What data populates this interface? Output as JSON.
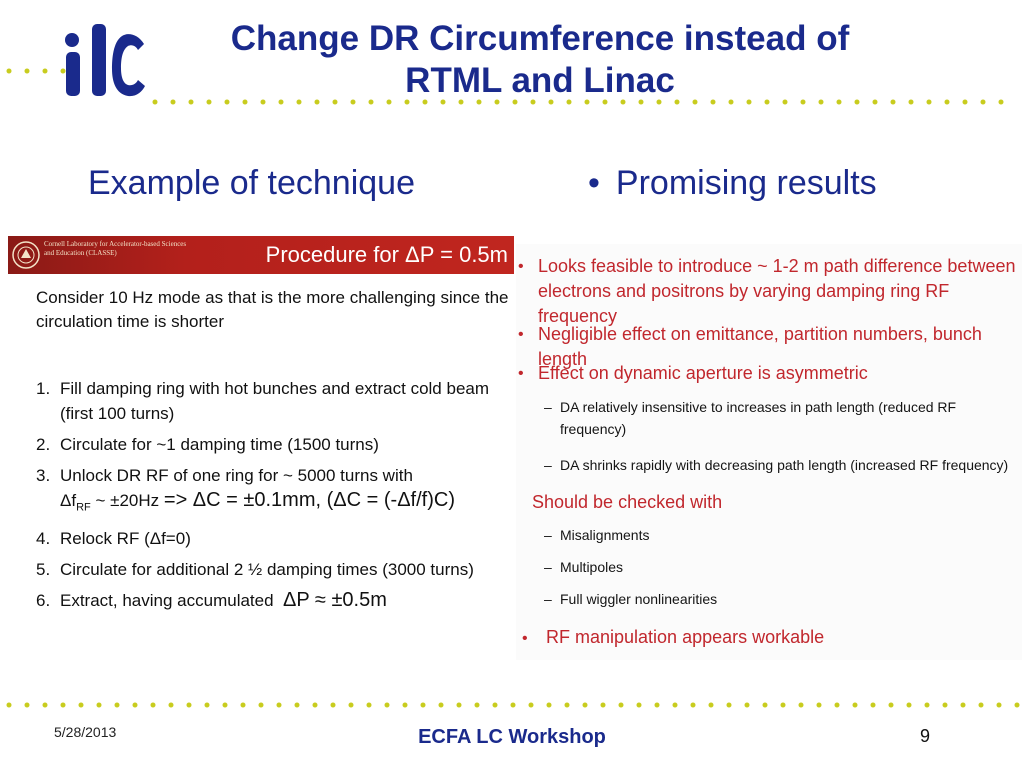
{
  "slide": {
    "title_line1": "Change DR Circumference instead of",
    "title_line2": "RTML and Linac",
    "left_heading": "Example of technique",
    "right_heading": "Promising results",
    "bullet_glyph": "•"
  },
  "logo": {
    "text": "ilc",
    "color": "#1a2a8c",
    "dot_color": "#c8cc1e"
  },
  "procedure": {
    "org_text": "Cornell Laboratory for Accelerator-based Sciences and Education (CLASSE)",
    "banner_title": "Procedure for ΔP =  0.5m",
    "banner_color": "#b3201b",
    "intro": "Consider 10 Hz mode as that is the more challenging since the circulation time is shorter",
    "steps": [
      {
        "num": "1.",
        "text": "Fill damping ring with hot bunches and extract cold beam (first 100 turns)"
      },
      {
        "num": "2.",
        "text": "Circulate for ~1 damping time (1500 turns)"
      },
      {
        "num": "3.",
        "line1": "Unlock DR RF of one ring for ~ 5000 turns with",
        "df": "Δf",
        "sub": "RF",
        "approx": " ~ ±20Hz ",
        "formula": "=> ΔC = ±0.1mm,   (ΔC = (-Δf/f)C)"
      },
      {
        "num": "4.",
        "text": "Relock RF (Δf=0)"
      },
      {
        "num": "5.",
        "text": "Circulate for additional 2 ½ damping times (3000 turns)"
      },
      {
        "num": "6.",
        "text": "Extract, having accumulated",
        "formula": "ΔP ≈ ±0.5m"
      }
    ]
  },
  "results": {
    "items": [
      {
        "text": "Looks feasible to introduce ~ 1-2 m path difference between electrons and positrons by varying damping ring RF frequency"
      },
      {
        "text": "Negligible effect on emittance, partition numbers, bunch length"
      },
      {
        "text": "Effect on dynamic aperture is asymmetric"
      }
    ],
    "da_subitems": [
      "DA relatively insensitive to increases in path length (reduced RF frequency)",
      "DA shrinks rapidly with decreasing path length (increased RF frequency)"
    ],
    "checked_heading": "Should be checked with",
    "checked_items": [
      "Misalignments",
      "Multipoles",
      "Full wiggler nonlinearities"
    ],
    "final_item": "RF manipulation appears workable",
    "dash": "–",
    "red_color": "#c1272d"
  },
  "footer": {
    "date": "5/28/2013",
    "center": "ECFA LC Workshop",
    "page": "9"
  }
}
